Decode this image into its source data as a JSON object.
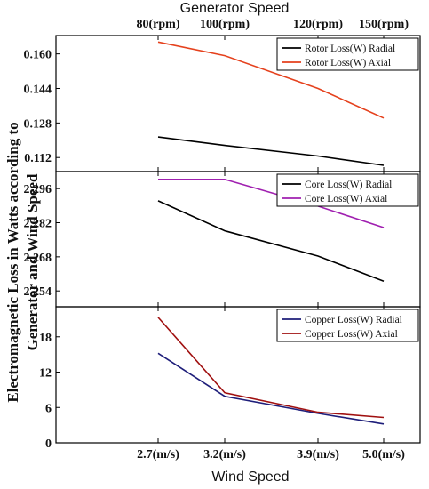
{
  "chart_data": [
    {
      "type": "line",
      "x_title": "Generator Speed",
      "y_title": "Electromagnetic Loss in Watts according to Generator and Wind Speed",
      "categories": [
        "80(rpm)",
        "100(rpm)",
        "120(rpm)",
        "150(rpm)"
      ],
      "yticks": [
        "0.160",
        "0.144",
        "0.128",
        "0.112"
      ],
      "yrange": [
        0.1055,
        0.1685
      ],
      "legend_position": "top-right",
      "series": [
        {
          "name": "Rotor Loss(W) Radial",
          "color": "#000000",
          "values": [
            0.1215,
            0.1176,
            0.1127,
            0.1084
          ]
        },
        {
          "name": "Rotor Loss(W) Axial",
          "color": "#e5411d",
          "values": [
            0.1655,
            0.1592,
            0.144,
            0.1303
          ]
        }
      ]
    },
    {
      "type": "line",
      "categories": [
        "2.7(m/s)",
        "3.2(m/s)",
        "3.9(m/s)",
        "5.0(m/s)"
      ],
      "yticks": [
        "2.296",
        "2.282",
        "2.268",
        "2.254"
      ],
      "yrange": [
        2.2475,
        2.303
      ],
      "legend_position": "top-right",
      "series": [
        {
          "name": "Core Loss(W) Radial",
          "color": "#000000",
          "values": [
            2.291,
            2.2787,
            2.2683,
            2.258
          ]
        },
        {
          "name": "Core Loss(W) Axial",
          "color": "#a020b0",
          "values": [
            2.2998,
            2.2998,
            2.2888,
            2.28
          ]
        }
      ]
    },
    {
      "type": "line",
      "x_title": "Wind Speed",
      "categories": [
        "2.7(m/s)",
        "3.2(m/s)",
        "3.9(m/s)",
        "5.0(m/s)"
      ],
      "yticks": [
        "18",
        "12",
        "6",
        "0"
      ],
      "yrange": [
        0,
        23.1
      ],
      "legend_position": "top-right",
      "series": [
        {
          "name": "Copper Loss(W) Radial",
          "color": "#1e1e7a",
          "values": [
            15.2,
            7.9,
            5.0,
            3.2
          ]
        },
        {
          "name": "Copper Loss(W) Axial",
          "color": "#a01010",
          "values": [
            21.3,
            8.5,
            5.2,
            4.3
          ]
        }
      ]
    }
  ]
}
